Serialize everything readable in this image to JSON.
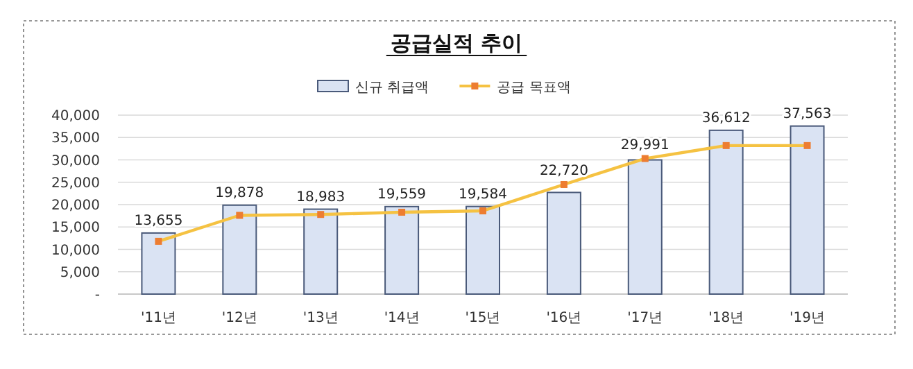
{
  "chart_data": {
    "type": "bar",
    "title": "공급실적 추이",
    "categories": [
      "'11년",
      "'12년",
      "'13년",
      "'14년",
      "'15년",
      "'16년",
      "'17년",
      "'18년",
      "'19년"
    ],
    "series": [
      {
        "name": "신규 취급액",
        "color": "#dae3f3",
        "values": [
          13655,
          19878,
          18983,
          19559,
          19584,
          22720,
          29991,
          36612,
          37563
        ],
        "value_labels": [
          "13,655",
          "19,878",
          "18,983",
          "19,559",
          "19,584",
          "22,720",
          "29,991",
          "36,612",
          "37,563"
        ]
      },
      {
        "name": "공급 목표액",
        "type": "line",
        "color": "#f5c242",
        "marker": "square",
        "values": [
          11800,
          17600,
          17800,
          18300,
          18600,
          24500,
          30300,
          33200,
          33200
        ]
      }
    ],
    "ylim": [
      0,
      40000
    ],
    "yticks": [
      {
        "value": 0,
        "label": "-"
      },
      {
        "value": 5000,
        "label": "5,000"
      },
      {
        "value": 10000,
        "label": "10,000"
      },
      {
        "value": 15000,
        "label": "15,000"
      },
      {
        "value": 20000,
        "label": "20,000"
      },
      {
        "value": 25000,
        "label": "25,000"
      },
      {
        "value": 30000,
        "label": "30,000"
      },
      {
        "value": 35000,
        "label": "35,000"
      },
      {
        "value": 40000,
        "label": "40,000"
      }
    ],
    "grid": "y",
    "legend": "top"
  }
}
